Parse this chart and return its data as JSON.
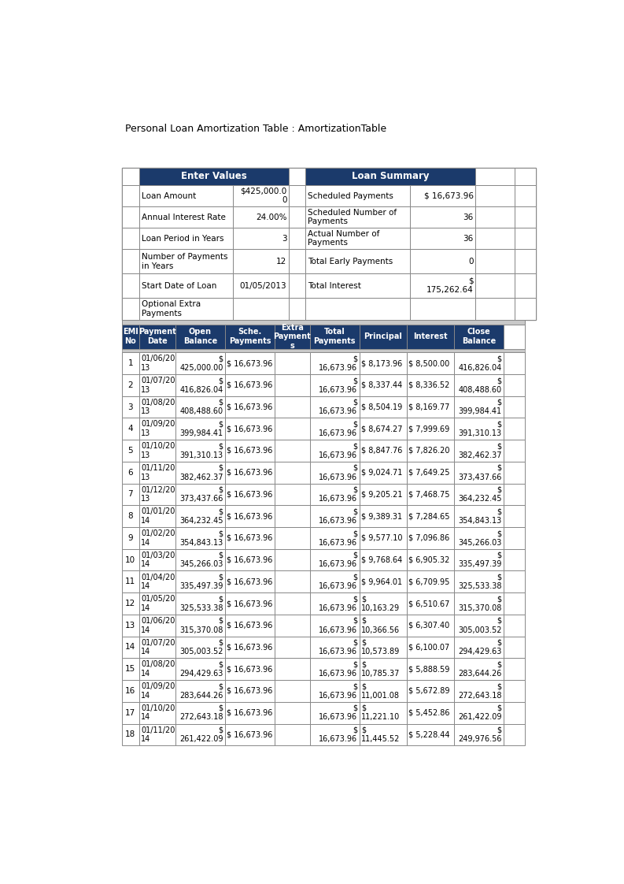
{
  "title": "Personal Loan Amortization Table : AmortizationTable",
  "header_bg": "#1B3A6B",
  "header_fg": "#FFFFFF",
  "border_color": "#888888",
  "light_gray": "#C8C8C8",
  "white": "#FFFFFF",
  "summary": {
    "enter_values_label": "Enter Values",
    "loan_summary_label": "Loan Summary",
    "ev_rows": [
      [
        "Loan Amount",
        "$425,000.0\n0"
      ],
      [
        "Annual Interest Rate",
        "24.00%"
      ],
      [
        "Loan Period in Years",
        "3"
      ],
      [
        "Number of Payments\nin Years",
        "12"
      ],
      [
        "Start Date of Loan",
        "01/05/2013"
      ],
      [
        "Optional Extra\nPayments",
        ""
      ]
    ],
    "ls_rows": [
      [
        "Scheduled Payments",
        "$ 16,673.96"
      ],
      [
        "Scheduled Number of\nPayments",
        "36"
      ],
      [
        "Actual Number of\nPayments",
        "36"
      ],
      [
        "Total Early Payments",
        "0"
      ],
      [
        "Total Interest",
        "$\n175,262.64"
      ],
      [
        "",
        ""
      ]
    ]
  },
  "amort_col_headers": [
    "EMI\nNo",
    "Payment\nDate",
    "Open\nBalance",
    "Sche.\nPayments",
    "Extra\nPayment\ns",
    "Total\nPayments",
    "Principal",
    "Interest",
    "Close\nBalance"
  ],
  "amort_data": [
    [
      1,
      "01/06/20\n13",
      "$\n425,000.00",
      "$ 16,673.96",
      "",
      "$\n16,673.96",
      "$ 8,173.96",
      "$ 8,500.00",
      "$\n416,826.04"
    ],
    [
      2,
      "01/07/20\n13",
      "$\n416,826.04",
      "$ 16,673.96",
      "",
      "$\n16,673.96",
      "$ 8,337.44",
      "$ 8,336.52",
      "$\n408,488.60"
    ],
    [
      3,
      "01/08/20\n13",
      "$\n408,488.60",
      "$ 16,673.96",
      "",
      "$\n16,673.96",
      "$ 8,504.19",
      "$ 8,169.77",
      "$\n399,984.41"
    ],
    [
      4,
      "01/09/20\n13",
      "$\n399,984.41",
      "$ 16,673.96",
      "",
      "$\n16,673.96",
      "$ 8,674.27",
      "$ 7,999.69",
      "$\n391,310.13"
    ],
    [
      5,
      "01/10/20\n13",
      "$\n391,310.13",
      "$ 16,673.96",
      "",
      "$\n16,673.96",
      "$ 8,847.76",
      "$ 7,826.20",
      "$\n382,462.37"
    ],
    [
      6,
      "01/11/20\n13",
      "$\n382,462.37",
      "$ 16,673.96",
      "",
      "$\n16,673.96",
      "$ 9,024.71",
      "$ 7,649.25",
      "$\n373,437.66"
    ],
    [
      7,
      "01/12/20\n13",
      "$\n373,437.66",
      "$ 16,673.96",
      "",
      "$\n16,673.96",
      "$ 9,205.21",
      "$ 7,468.75",
      "$\n364,232.45"
    ],
    [
      8,
      "01/01/20\n14",
      "$\n364,232.45",
      "$ 16,673.96",
      "",
      "$\n16,673.96",
      "$ 9,389.31",
      "$ 7,284.65",
      "$\n354,843.13"
    ],
    [
      9,
      "01/02/20\n14",
      "$\n354,843.13",
      "$ 16,673.96",
      "",
      "$\n16,673.96",
      "$ 9,577.10",
      "$ 7,096.86",
      "$\n345,266.03"
    ],
    [
      10,
      "01/03/20\n14",
      "$\n345,266.03",
      "$ 16,673.96",
      "",
      "$\n16,673.96",
      "$ 9,768.64",
      "$ 6,905.32",
      "$\n335,497.39"
    ],
    [
      11,
      "01/04/20\n14",
      "$\n335,497.39",
      "$ 16,673.96",
      "",
      "$\n16,673.96",
      "$ 9,964.01",
      "$ 6,709.95",
      "$\n325,533.38"
    ],
    [
      12,
      "01/05/20\n14",
      "$\n325,533.38",
      "$ 16,673.96",
      "",
      "$\n16,673.96",
      "$\n10,163.29",
      "$ 6,510.67",
      "$\n315,370.08"
    ],
    [
      13,
      "01/06/20\n14",
      "$\n315,370.08",
      "$ 16,673.96",
      "",
      "$\n16,673.96",
      "$\n10,366.56",
      "$ 6,307.40",
      "$\n305,003.52"
    ],
    [
      14,
      "01/07/20\n14",
      "$\n305,003.52",
      "$ 16,673.96",
      "",
      "$\n16,673.96",
      "$\n10,573.89",
      "$ 6,100.07",
      "$\n294,429.63"
    ],
    [
      15,
      "01/08/20\n14",
      "$\n294,429.63",
      "$ 16,673.96",
      "",
      "$\n16,673.96",
      "$\n10,785.37",
      "$ 5,888.59",
      "$\n283,644.26"
    ],
    [
      16,
      "01/09/20\n14",
      "$\n283,644.26",
      "$ 16,673.96",
      "",
      "$\n16,673.96",
      "$\n11,001.08",
      "$ 5,672.89",
      "$\n272,643.18"
    ],
    [
      17,
      "01/10/20\n14",
      "$\n272,643.18",
      "$ 16,673.96",
      "",
      "$\n16,673.96",
      "$\n11,221.10",
      "$ 5,452.86",
      "$\n261,422.09"
    ],
    [
      18,
      "01/11/20\n14",
      "$\n261,422.09",
      "$ 16,673.96",
      "",
      "$\n16,673.96",
      "$\n11,445.52",
      "$ 5,228.44",
      "$\n249,976.56"
    ]
  ]
}
